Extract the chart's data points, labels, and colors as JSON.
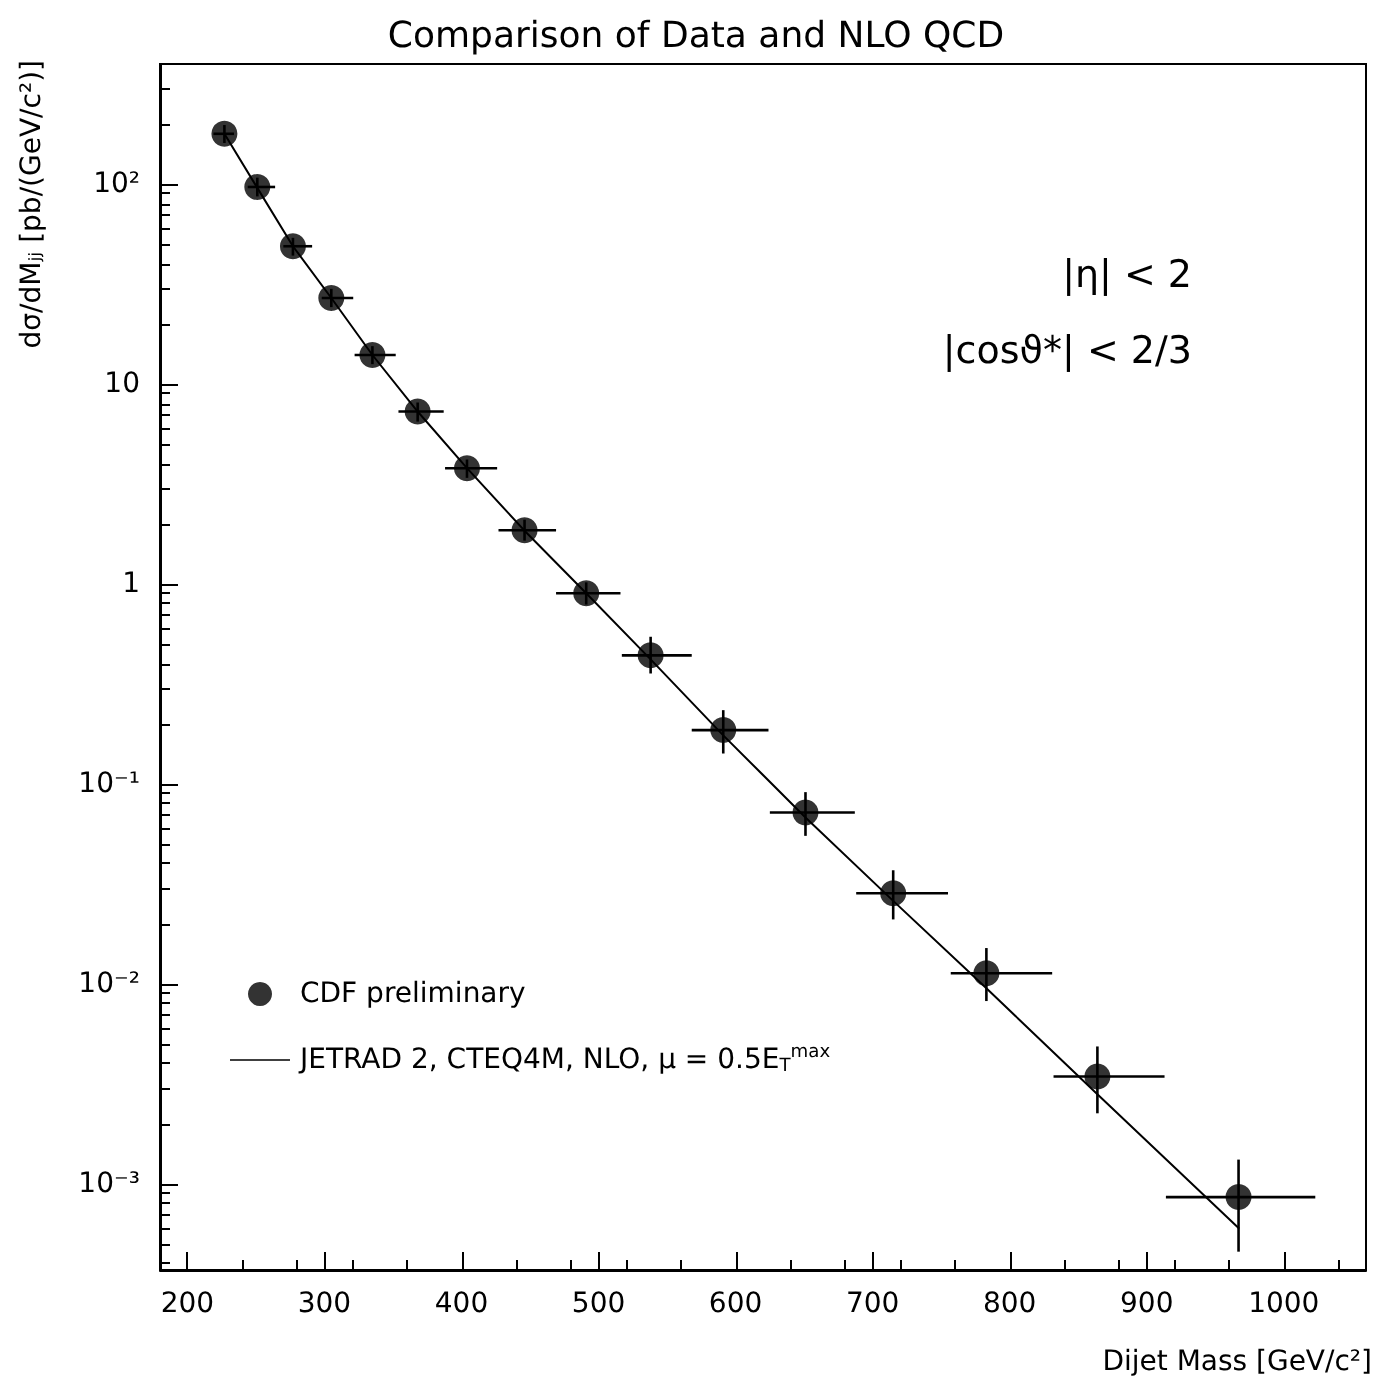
{
  "chart_data": {
    "type": "scatter",
    "title": "Comparison of Data and NLO QCD",
    "xlabel": "Dijet Mass [GeV/c²]",
    "ylabel": "dσ/dMⱼⱼ [pb/(GeV/c²)]",
    "log": "y",
    "xlim": [
      180,
      1060
    ],
    "xticks": [
      200,
      300,
      400,
      500,
      600,
      700,
      800,
      900,
      1000
    ],
    "ylim": [
      0.00037,
      400
    ],
    "yticks": [
      {
        "value": 0.001,
        "label": "10⁻³"
      },
      {
        "value": 0.01,
        "label": "10⁻²"
      },
      {
        "value": 0.1,
        "label": "10⁻¹"
      },
      1,
      10,
      {
        "value": 100,
        "label": "10²"
      }
    ],
    "grid": false,
    "legend": "bottom left",
    "annotations": [
      "|η| < 2",
      "|cosϑ*| < 2/3"
    ],
    "series": [
      {
        "name": "CDF preliminary",
        "type": "scatter",
        "color": "#000000",
        "marker": "circle",
        "x": [
          227,
          251,
          277,
          305,
          335,
          368,
          404,
          446,
          491,
          538,
          591,
          651,
          715,
          783,
          864,
          967
        ],
        "values": [
          179,
          97,
          49,
          27,
          14,
          7.3,
          3.8,
          1.86,
          0.9,
          0.44,
          0.186,
          0.072,
          0.0284,
          0.0113,
          0.00344,
          0.000857
        ],
        "errors": [
          [
            161,
            198
          ],
          [
            87,
            108
          ],
          [
            44,
            54
          ],
          [
            24.3,
            30
          ],
          [
            12.6,
            15.5
          ],
          [
            6.5,
            8.1
          ],
          [
            3.4,
            4.2
          ],
          [
            1.65,
            2.1
          ],
          [
            0.79,
            1.02
          ],
          [
            0.357,
            0.545
          ],
          [
            0.142,
            0.234
          ],
          [
            0.055,
            0.091
          ],
          [
            0.021,
            0.037
          ],
          [
            0.0082,
            0.0151
          ],
          [
            0.00225,
            0.00486
          ],
          [
            0.000457,
            0.00132
          ]
        ],
        "xerrors": [
          [
            219,
            234
          ],
          [
            244,
            264
          ],
          [
            270,
            291
          ],
          [
            298,
            321
          ],
          [
            322,
            352
          ],
          [
            354,
            387
          ],
          [
            388,
            426
          ],
          [
            427,
            469
          ],
          [
            469,
            516
          ],
          [
            517,
            568
          ],
          [
            568,
            624
          ],
          [
            625,
            687
          ],
          [
            688,
            755
          ],
          [
            757,
            831
          ],
          [
            832,
            913
          ],
          [
            914,
            1023
          ]
        ]
      },
      {
        "name": "JETRAD 2, CTEQ4M, NLO, μ = 0.5E$_{T}$$^{max}$",
        "type": "line",
        "color": "#000000",
        "marker": "none",
        "line_style": "solid",
        "x": [
          227,
          251,
          277,
          305,
          335,
          368,
          404,
          446,
          491,
          538,
          591,
          651,
          715,
          783,
          864,
          967
        ],
        "values": [
          179,
          96,
          49,
          27,
          14,
          7.3,
          3.8,
          1.85,
          0.9,
          0.42,
          0.175,
          0.068,
          0.026,
          0.0095,
          0.0028,
          0.0006
        ]
      }
    ]
  }
}
